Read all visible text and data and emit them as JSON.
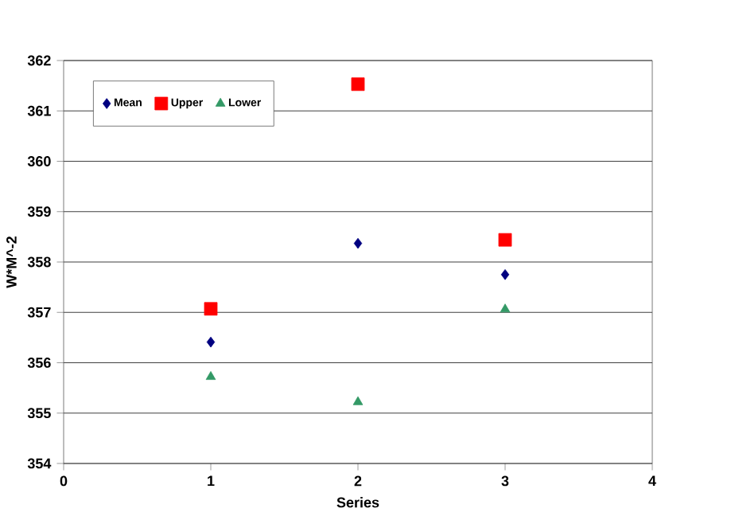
{
  "chart_data": {
    "type": "scatter",
    "xlabel": "Series",
    "ylabel": "W*M^-2",
    "xlim": [
      0,
      4
    ],
    "xticks": [
      0,
      1,
      2,
      3,
      4
    ],
    "ylim": [
      354,
      362
    ],
    "yticks": [
      354,
      355,
      356,
      357,
      358,
      359,
      360,
      361,
      362
    ],
    "grid": "y",
    "legend": "top left",
    "series": [
      {
        "name": "Mean",
        "color": "#000080",
        "marker": "diamond",
        "x": [
          1,
          2,
          3
        ],
        "values": [
          356.41,
          358.37,
          357.75
        ]
      },
      {
        "name": "Upper",
        "color": "#ff0000",
        "marker": "square",
        "x": [
          1,
          2,
          3
        ],
        "values": [
          357.07,
          361.53,
          358.44
        ]
      },
      {
        "name": "Lower",
        "color": "#339966",
        "marker": "triangle",
        "x": [
          1,
          2,
          3
        ],
        "values": [
          355.72,
          355.22,
          357.06
        ]
      }
    ]
  }
}
